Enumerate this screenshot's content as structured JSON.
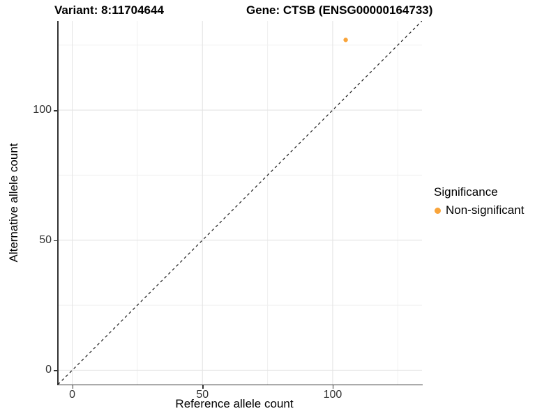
{
  "titles": {
    "variant": "Variant: 8:11704644",
    "gene": "Gene: CTSB (ENSG00000164733)"
  },
  "axes": {
    "x_title": "Reference allele count",
    "y_title": "Alternative allele count"
  },
  "legend": {
    "title": "Significance",
    "items": [
      {
        "label": "Non-significant",
        "color": "#F9A43A"
      }
    ]
  },
  "colors": {
    "background": "#ffffff",
    "axis_line": "#333333",
    "grid_major": "#E4E4E4",
    "grid_minor": "#F0F0F0",
    "reference_line": "#1a1a1a",
    "point_orange": "#F9A43A",
    "text": "#000000",
    "tick_text": "#333333"
  },
  "chart_data": {
    "type": "scatter",
    "title": "Variant: 8:11704644   Gene: CTSB (ENSG00000164733)",
    "xlabel": "Reference allele count",
    "ylabel": "Alternative allele count",
    "xlim": [
      -5.5,
      134.3
    ],
    "ylim": [
      -5.5,
      134.3
    ],
    "x_ticks": [
      0,
      50,
      100
    ],
    "y_ticks": [
      0,
      50,
      100
    ],
    "x_minor_ticks": [
      25,
      75,
      125
    ],
    "y_minor_ticks": [
      25,
      75,
      125
    ],
    "grid": true,
    "legend_position": "right",
    "series": [
      {
        "name": "Non-significant",
        "color": "#F9A43A",
        "points": [
          {
            "x": 105,
            "y": 127
          }
        ]
      }
    ],
    "reference_line": {
      "type": "identity",
      "slope": 1,
      "intercept": 0,
      "style": "dashed",
      "color": "#1a1a1a"
    }
  }
}
